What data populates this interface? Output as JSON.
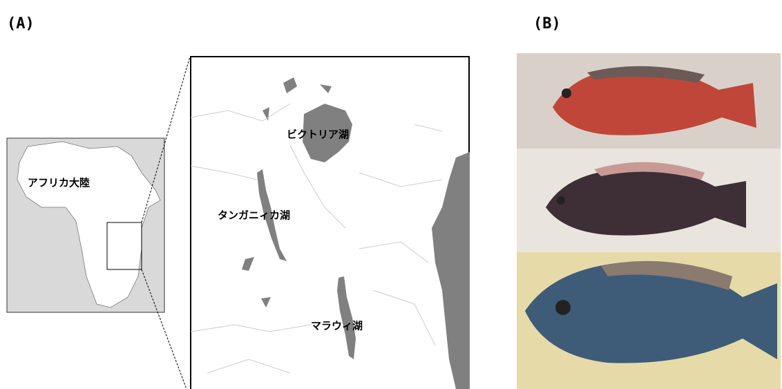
{
  "panel_a": {
    "label": "(A)",
    "continent": "アフリカ大陸",
    "lakes": [
      "ビクトリア湖",
      "タンガニィカ湖",
      "マラウィ湖"
    ]
  },
  "panel_b": {
    "label": "(B)"
  }
}
